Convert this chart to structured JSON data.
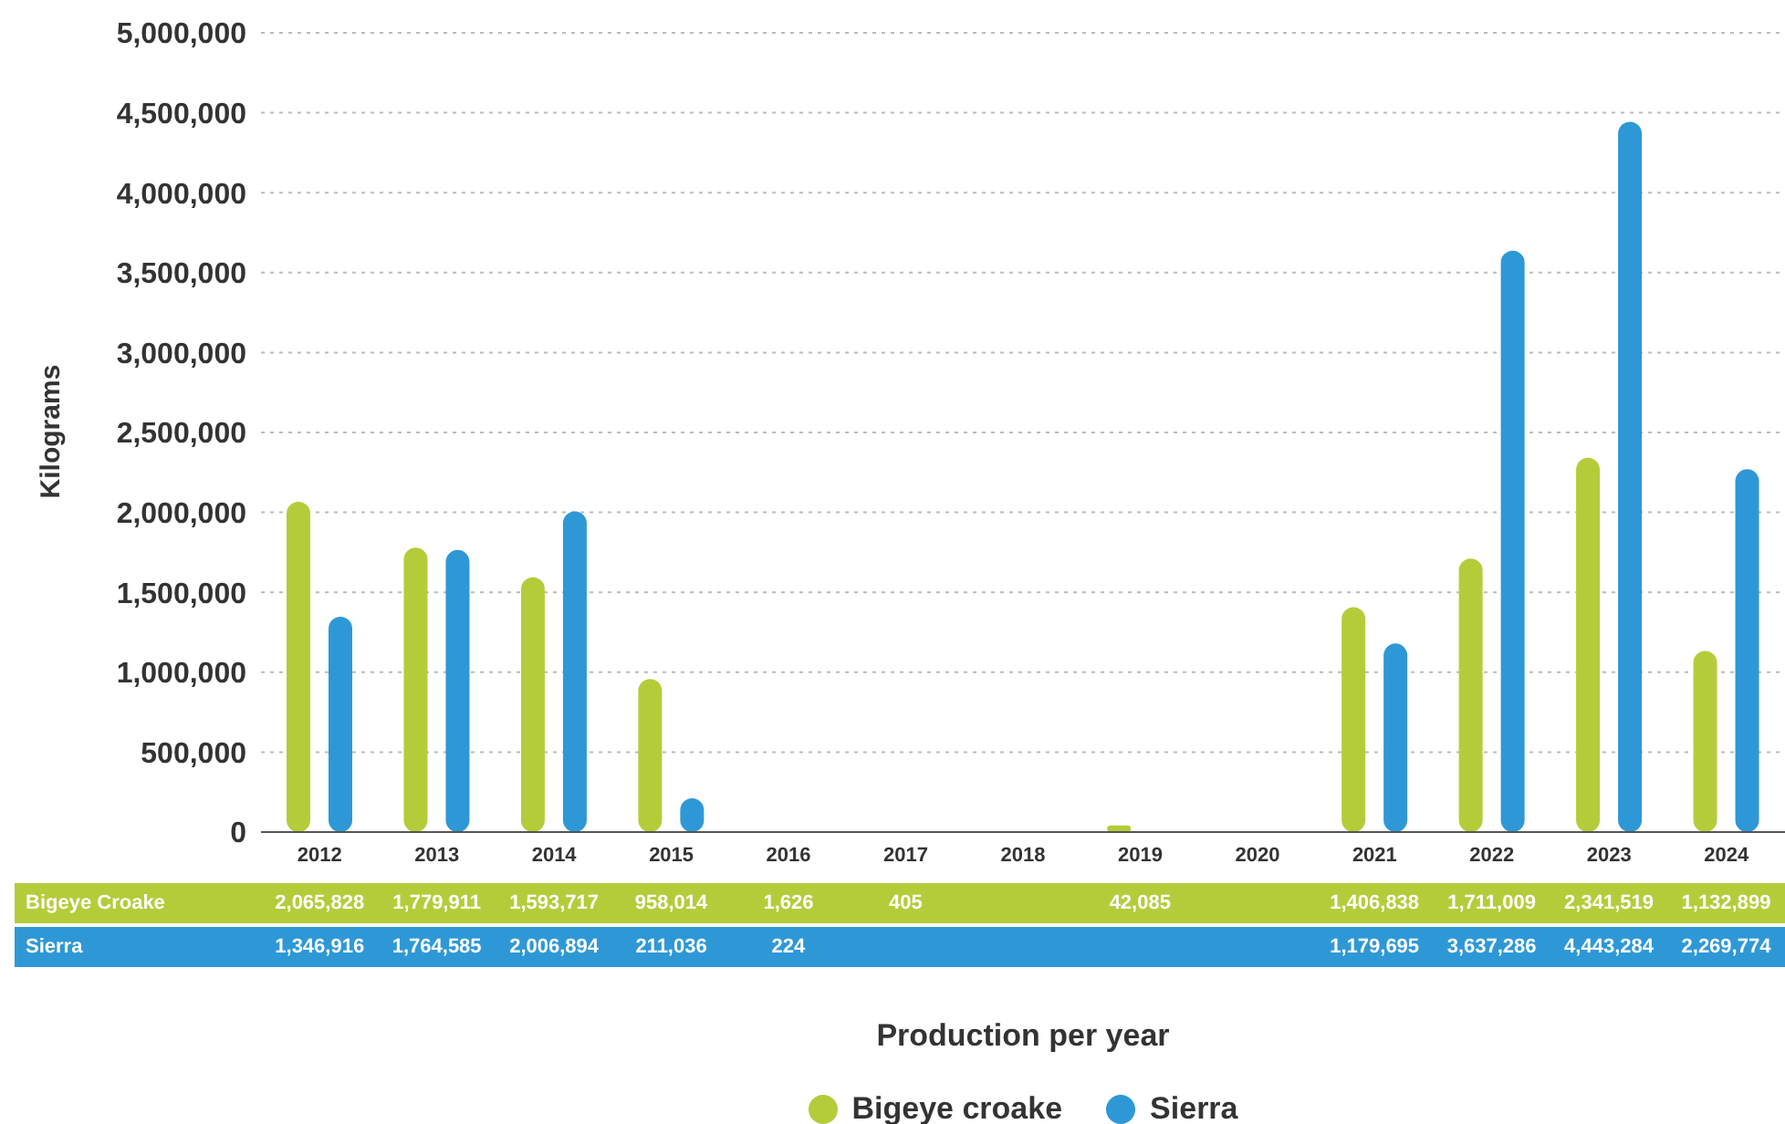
{
  "chart_data": {
    "type": "bar",
    "xlabel": "Production per year",
    "ylabel": "Kilograms",
    "categories": [
      "2012",
      "2013",
      "2014",
      "2015",
      "2016",
      "2017",
      "2018",
      "2019",
      "2020",
      "2021",
      "2022",
      "2023",
      "2024"
    ],
    "series": [
      {
        "name": "Bigeye croake",
        "color": "#b5cc3a",
        "values": [
          2065828,
          1779911,
          1593717,
          958014,
          1626,
          405,
          null,
          42085,
          null,
          1406838,
          1711009,
          2341519,
          1132899
        ],
        "value_labels": [
          "2,065,828",
          "1,779,911",
          "1,593,717",
          "958,014",
          "1,626",
          "405",
          null,
          "42,085",
          null,
          "1,406,838",
          "1,711,009",
          "2,341,519",
          "1,132,899"
        ]
      },
      {
        "name": "Sierra",
        "color": "#2e98d6",
        "values": [
          1346916,
          1764585,
          2006894,
          211036,
          224,
          null,
          null,
          null,
          null,
          1179695,
          3637286,
          4443284,
          2269774
        ],
        "value_labels": [
          "1,346,916",
          "1,764,585",
          "2,006,894",
          "211,036",
          "224",
          null,
          null,
          null,
          null,
          "1,179,695",
          "3,637,286",
          "4,443,284",
          "2,269,774"
        ]
      }
    ],
    "ylim": [
      0,
      5000000
    ],
    "yticks": [
      0,
      {
        "value": 500000,
        "label": "500,000"
      },
      {
        "value": 1000000,
        "label": "1,000,000"
      },
      {
        "value": 1500000,
        "label": "1,500,000"
      },
      {
        "value": 2000000,
        "label": "2,000,000"
      },
      {
        "value": 2500000,
        "label": "2,500,000"
      },
      {
        "value": 3000000,
        "label": "3,000,000"
      },
      {
        "value": 3500000,
        "label": "3,500,000"
      },
      {
        "value": 4000000,
        "label": "4,000,000"
      },
      {
        "value": 4500000,
        "label": "4,500,000"
      },
      {
        "value": 5000000,
        "label": "5,000,000"
      }
    ],
    "grid": "y",
    "legend": "bottom",
    "annotations": [
      "Bigeye Croake",
      "Sierra"
    ]
  }
}
